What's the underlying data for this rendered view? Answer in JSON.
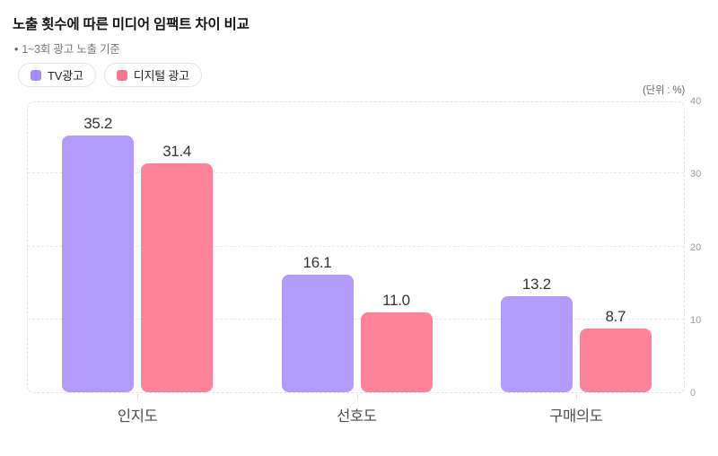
{
  "header": {
    "title": "노출 횟수에 따른 미디어 임팩트 차이 비교",
    "subtitle_bullet": "•",
    "subtitle": "1~3회 광고 노출 기준",
    "unit_label": "(단위 : %)"
  },
  "legend": [
    {
      "label": "TV광고",
      "color": "#a78bfa",
      "swatch_icon": "rounded-square-swatch"
    },
    {
      "label": "디지털 광고",
      "color": "#f8758d",
      "swatch_icon": "rounded-square-swatch"
    }
  ],
  "chart_data": {
    "type": "bar",
    "title": "노출 횟수에 따른 미디어 임팩트 차이 비교",
    "subtitle": "1~3회 광고 노출 기준",
    "unit": "(단위 : %)",
    "categories": [
      "인지도",
      "선호도",
      "구매의도"
    ],
    "series": [
      {
        "name": "TV광고",
        "color": "#b39bfb",
        "values": [
          35.2,
          16.1,
          13.2
        ],
        "labels": [
          "35.2",
          "16.1",
          "13.2"
        ]
      },
      {
        "name": "디지털 광고",
        "color": "#fc8399",
        "values": [
          31.4,
          11.0,
          8.7
        ],
        "labels": [
          "31.4",
          "11.0",
          "8.7"
        ]
      }
    ],
    "ylim": [
      0,
      40
    ],
    "yticks": [
      0,
      10,
      20,
      30,
      40
    ],
    "xlabel": "",
    "ylabel": "%",
    "grid": "dashed-horizontal",
    "legend_position": "top-left",
    "y_axis_position": "right",
    "value_labels_shown": true
  }
}
